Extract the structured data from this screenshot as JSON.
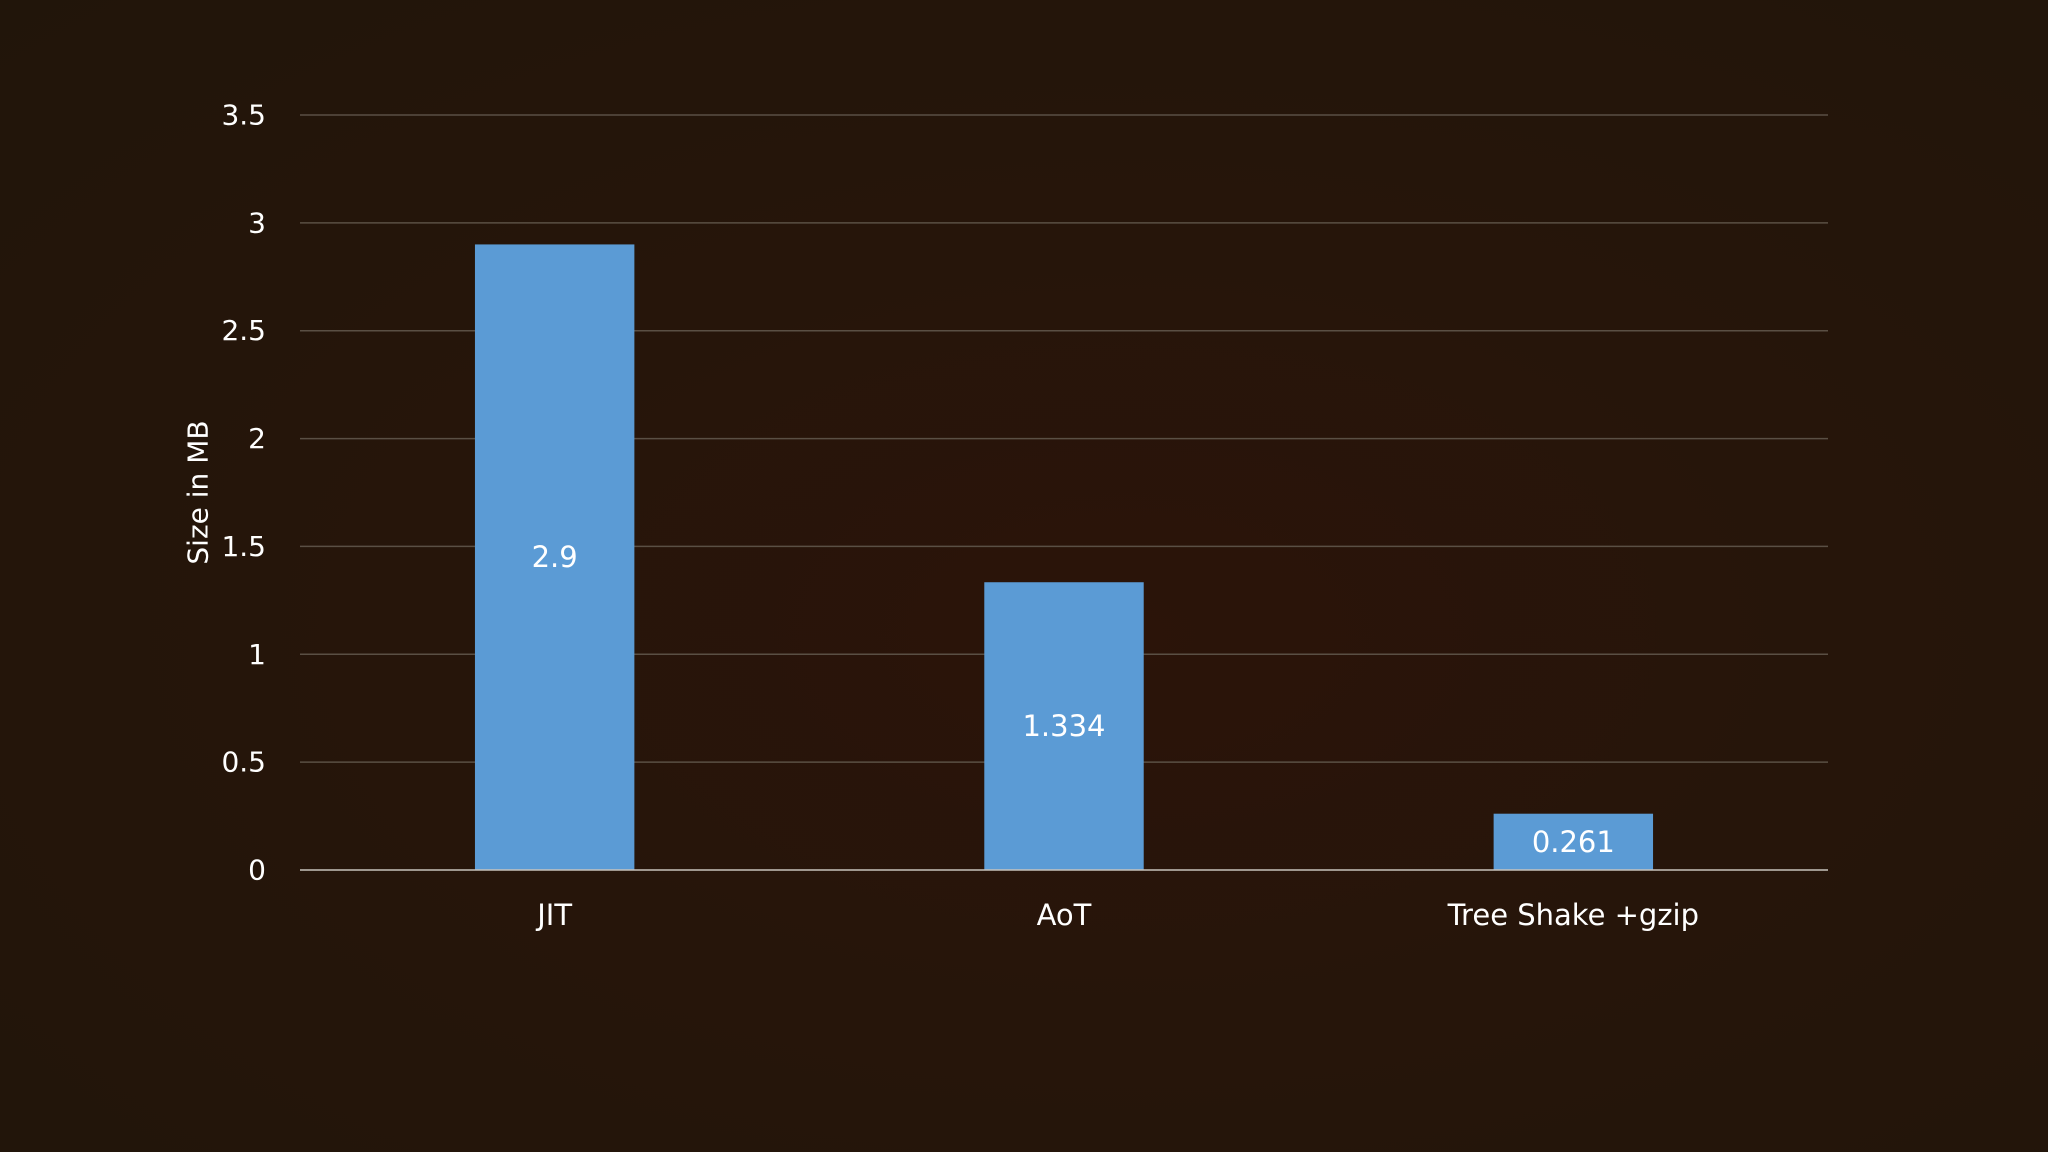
{
  "chart_data": {
    "type": "bar",
    "categories": [
      "JIT",
      "AoT",
      "Tree Shake +gzip"
    ],
    "values": [
      2.9,
      1.334,
      0.261
    ],
    "data_labels": [
      "2.9",
      "1.334",
      "0.261"
    ],
    "ylabel": "Size in MB",
    "ylim": [
      0,
      3.5
    ],
    "yticks": [
      0,
      0.5,
      1,
      1.5,
      2,
      2.5,
      3,
      3.5
    ],
    "ytick_labels": [
      "0",
      "0.5",
      "1",
      "1.5",
      "2",
      "2.5",
      "3",
      "3.5"
    ],
    "grid": true,
    "legend": "none",
    "colors": {
      "bar": "#5b9bd5",
      "grid": "#5a4f44",
      "axis": "#c8c3bd",
      "text": "#ffffff"
    }
  }
}
